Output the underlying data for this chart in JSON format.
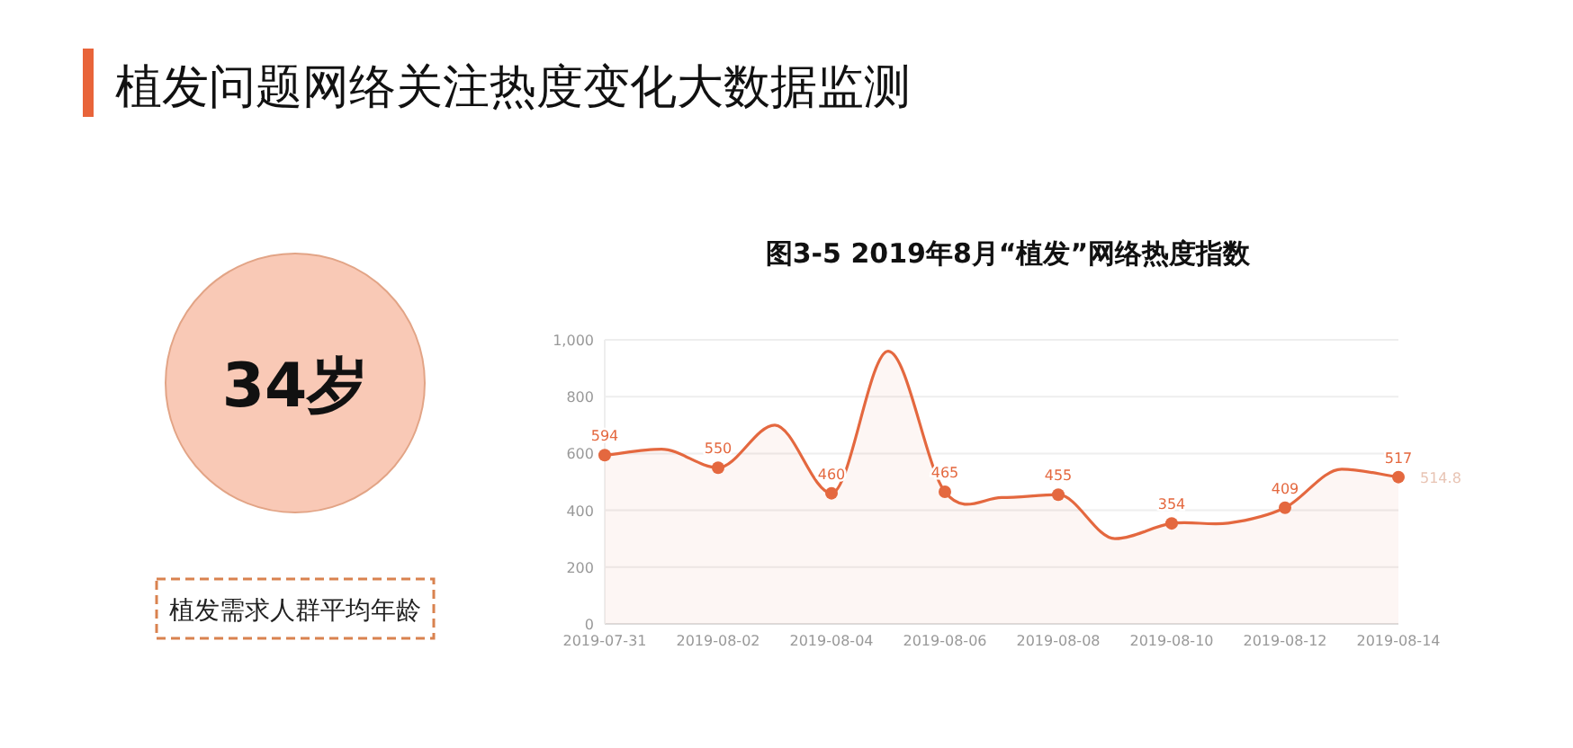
{
  "chart_data": [
    {
      "type": "other",
      "title": "植发问题网络关注热度变化大数据监测",
      "annotations": [
        "34岁",
        "植发需求人群平均年龄"
      ]
    },
    {
      "type": "area",
      "title": "图3-5 2019年8月“植发”网络热度指数",
      "x": [
        "2019-07-31",
        "2019-08-01",
        "2019-08-02",
        "2019-08-03",
        "2019-08-04",
        "2019-08-05",
        "2019-08-06",
        "2019-08-07",
        "2019-08-08",
        "2019-08-09",
        "2019-08-10",
        "2019-08-11",
        "2019-08-12",
        "2019-08-13",
        "2019-08-14"
      ],
      "series": [
        {
          "color": "#e4683f",
          "values": [
            594,
            615,
            550,
            700,
            460,
            960,
            465,
            445,
            455,
            300,
            354,
            355,
            409,
            545,
            517
          ],
          "value_labels": [
            "594",
            null,
            "550",
            null,
            "460",
            null,
            "465",
            null,
            "455",
            null,
            "354",
            null,
            "409",
            null,
            "517"
          ]
        }
      ],
      "xlim": [
        "2019-07-31",
        "2019-08-14"
      ],
      "xticks": [
        "2019-07-31",
        "2019-08-02",
        "2019-08-04",
        "2019-08-06",
        "2019-08-08",
        "2019-08-10",
        "2019-08-12",
        "2019-08-14"
      ],
      "ylim": [
        0,
        1000
      ],
      "yticks": [
        0,
        {
          "value": 200,
          "label": "200"
        },
        {
          "value": 400,
          "label": "400"
        },
        {
          "value": 600,
          "label": "600"
        },
        {
          "value": 800,
          "label": "800"
        },
        {
          "value": 1000,
          "label": "1,000"
        }
      ],
      "grid": "y",
      "marker": "circle",
      "line_style": "solid",
      "annotations": [
        {
          "text": "514.8",
          "x": "2019-08-14",
          "y": 514.8
        }
      ]
    }
  ]
}
